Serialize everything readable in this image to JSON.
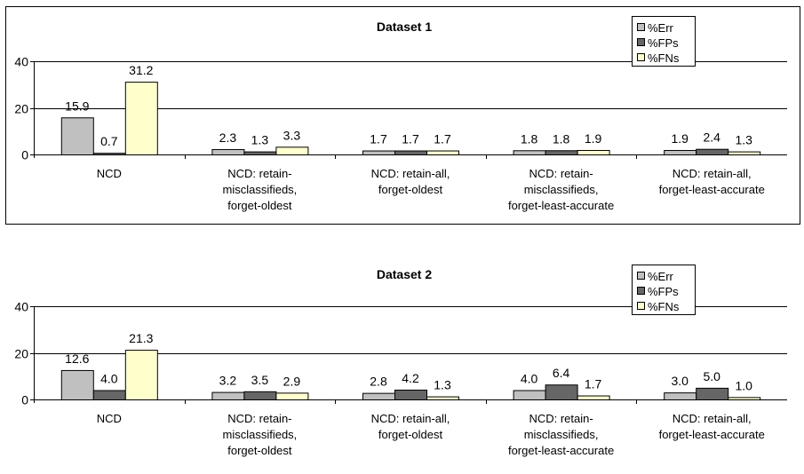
{
  "chart_data": [
    {
      "type": "bar",
      "title": "Dataset 1",
      "xlabel": "",
      "ylabel": "",
      "ylim": [
        0,
        40
      ],
      "yticks": [
        "0",
        "20",
        "40"
      ],
      "grid": "horizontal",
      "legend_position": "top-right",
      "categories": [
        [
          "NCD"
        ],
        [
          "NCD: retain-",
          "misclassifieds,",
          "forget-oldest"
        ],
        [
          "NCD: retain-all,",
          "forget-oldest"
        ],
        [
          "NCD: retain-",
          "misclassifieds,",
          "forget-least-accurate"
        ],
        [
          "NCD: retain-all,",
          "forget-least-accurate"
        ]
      ],
      "series": [
        {
          "name": "%Err",
          "color": "#c0c0c0",
          "values": [
            15.9,
            2.3,
            1.7,
            1.8,
            1.9
          ],
          "labels": [
            "15.9",
            "2.3",
            "1.7",
            "1.8",
            "1.9"
          ]
        },
        {
          "name": "%FPs",
          "color": "#666666",
          "values": [
            0.7,
            1.3,
            1.7,
            1.8,
            2.4
          ],
          "labels": [
            "0.7",
            "1.3",
            "1.7",
            "1.8",
            "2.4"
          ]
        },
        {
          "name": "%FNs",
          "color": "#ffffcc",
          "values": [
            31.2,
            3.3,
            1.7,
            1.9,
            1.3
          ],
          "labels": [
            "31.2",
            "3.3",
            "1.7",
            "1.9",
            "1.3"
          ]
        }
      ]
    },
    {
      "type": "bar",
      "title": "Dataset 2",
      "xlabel": "",
      "ylabel": "",
      "ylim": [
        0,
        40
      ],
      "yticks": [
        "0",
        "20",
        "40"
      ],
      "grid": "horizontal",
      "legend_position": "top-right",
      "categories": [
        [
          "NCD"
        ],
        [
          "NCD: retain-",
          "misclassifieds,",
          "forget-oldest"
        ],
        [
          "NCD: retain-all,",
          "forget-oldest"
        ],
        [
          "NCD: retain-",
          "misclassifieds,",
          "forget-least-accurate"
        ],
        [
          "NCD: retain-all,",
          "forget-least-accurate"
        ]
      ],
      "series": [
        {
          "name": "%Err",
          "color": "#c0c0c0",
          "values": [
            12.6,
            3.2,
            2.8,
            4.0,
            3.0
          ],
          "labels": [
            "12.6",
            "3.2",
            "2.8",
            "4.0",
            "3.0"
          ]
        },
        {
          "name": "%FPs",
          "color": "#666666",
          "values": [
            4.0,
            3.5,
            4.2,
            6.4,
            5.0
          ],
          "labels": [
            "4.0",
            "3.5",
            "4.2",
            "6.4",
            "5.0"
          ]
        },
        {
          "name": "%FNs",
          "color": "#ffffcc",
          "values": [
            21.3,
            2.9,
            1.3,
            1.7,
            1.0
          ],
          "labels": [
            "21.3",
            "2.9",
            "1.3",
            "1.7",
            "1.0"
          ]
        }
      ]
    }
  ]
}
